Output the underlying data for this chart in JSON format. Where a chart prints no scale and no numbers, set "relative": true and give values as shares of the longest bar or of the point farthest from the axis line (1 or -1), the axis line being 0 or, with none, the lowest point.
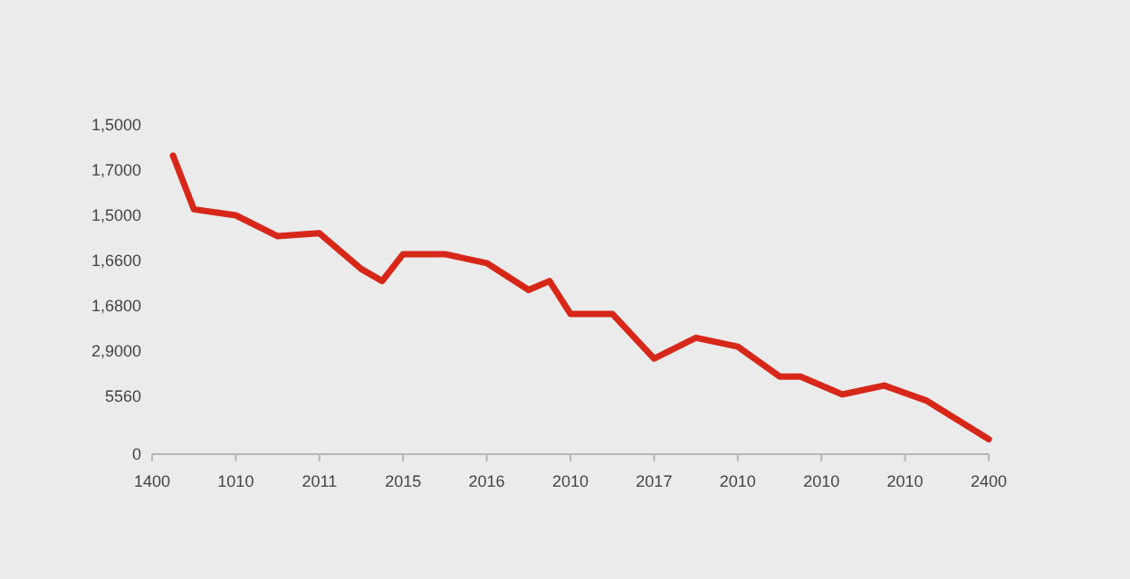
{
  "chart_data": {
    "type": "line",
    "relative": true,
    "categories": [
      "1400",
      null,
      null,
      null,
      "1010",
      null,
      null,
      null,
      "2011",
      null,
      null,
      null,
      "2015",
      null,
      null,
      null,
      "2016",
      null,
      null,
      null,
      "2010",
      null,
      null,
      null,
      "2017",
      null,
      null,
      null,
      "2010",
      null,
      null,
      null,
      "2010",
      null,
      null,
      null,
      "2010",
      null,
      null,
      null,
      "2400"
    ],
    "series": [
      {
        "color": "#d62718",
        "values": [
          null,
          1,
          0.82,
          null,
          0.8,
          null,
          0.73,
          null,
          0.74,
          null,
          0.62,
          0.58,
          0.67,
          null,
          0.67,
          null,
          0.64,
          null,
          0.55,
          0.58,
          0.47,
          null,
          0.47,
          null,
          0.32,
          null,
          0.39,
          null,
          0.36,
          null,
          0.26,
          0.26,
          null,
          0.2,
          null,
          0.23,
          null,
          0.18,
          null,
          null,
          0.05
        ]
      }
    ],
    "annotations": [
      "1,5000",
      "1,7000",
      "1,5000",
      "1,6600",
      "1,6800",
      "2,9000",
      "5560",
      "0"
    ],
    "marker": "none",
    "line_style": "solid"
  }
}
